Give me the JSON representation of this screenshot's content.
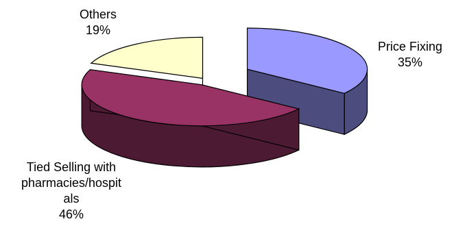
{
  "chart_data": {
    "type": "pie",
    "style": "3d-exploded",
    "title": "",
    "slices": [
      {
        "label": "Price Fixing",
        "value": 35,
        "percent_label": "35%",
        "color": "#9999ff",
        "side_color": "#4c4c7f",
        "label_lines": [
          "Price Fixing"
        ]
      },
      {
        "label": "Tied Selling with pharmacies/hospitals",
        "value": 46,
        "percent_label": "46%",
        "color": "#993366",
        "side_color": "#4d1a33",
        "label_lines": [
          "Tied Selling with",
          "pharmacies/hospit",
          "als"
        ]
      },
      {
        "label": "Others",
        "value": 19,
        "percent_label": "19%",
        "color": "#ffffcc",
        "side_color": "#808066",
        "label_lines": [
          "Others"
        ]
      }
    ],
    "legend": "none"
  }
}
